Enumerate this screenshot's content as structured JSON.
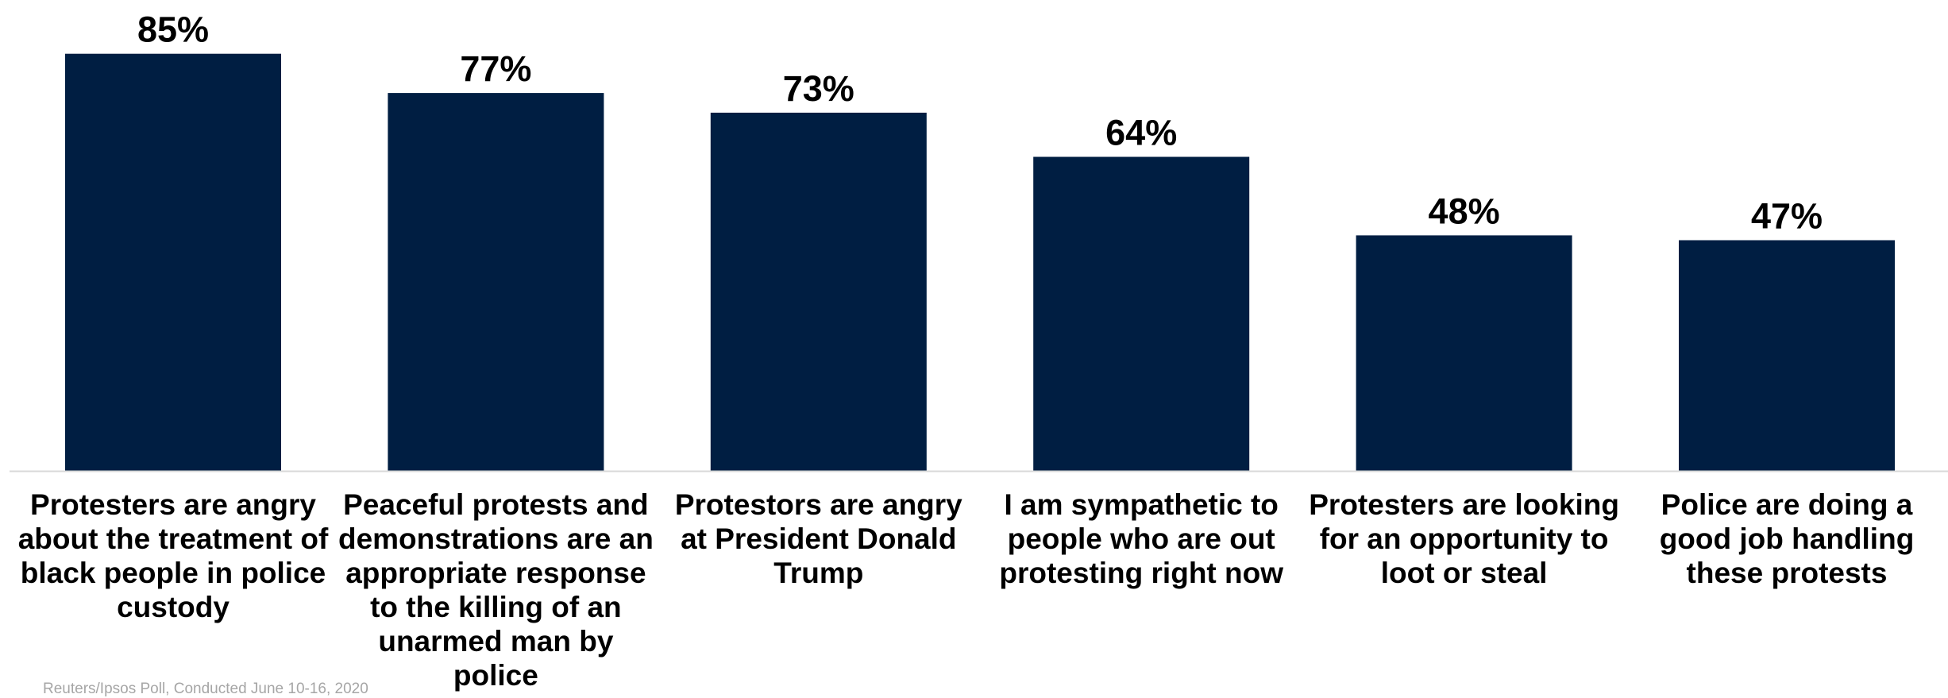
{
  "chart_data": {
    "type": "bar",
    "categories": [
      "Protesters are angry about the treatment of black people in police custody",
      "Peaceful protests and demonstrations are an appropriate response to the killing of an unarmed man by police",
      "Protestors are angry at President Donald Trump",
      "I am sympathetic to people who are out protesting right now",
      "Protesters are looking for an opportunity to loot or steal",
      "Police are doing a good job handling these protests"
    ],
    "values": [
      85,
      77,
      73,
      64,
      48,
      47
    ],
    "value_labels": [
      "85%",
      "77%",
      "73%",
      "64%",
      "48%",
      "47%"
    ],
    "ylim": [
      0,
      100
    ],
    "grid": false,
    "bar_color": "#001e42",
    "axis_color": "#d9d9d9"
  },
  "source": "Reuters/Ipsos Poll, Conducted June 10-16, 2020"
}
